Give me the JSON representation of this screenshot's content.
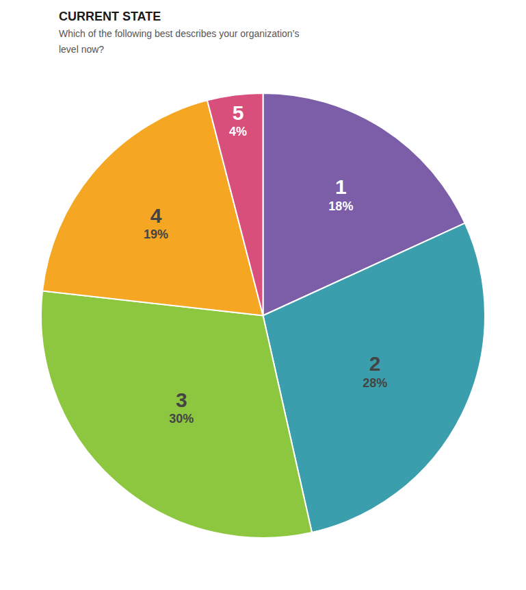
{
  "chart_data": {
    "type": "pie",
    "title": "CURRENT STATE",
    "subtitle": "Which of the following best describes your organization’s\nlevel now?",
    "categories": [
      "1",
      "2",
      "3",
      "4",
      "5"
    ],
    "values": [
      18,
      28,
      30,
      19,
      4
    ],
    "value_labels": [
      "18%",
      "28%",
      "30%",
      "19%",
      "4%"
    ],
    "data_labels": true,
    "colors": [
      "#7B5EA7",
      "#3A9EAD",
      "#8DC63F",
      "#F5A623",
      "#D94F7C"
    ]
  }
}
